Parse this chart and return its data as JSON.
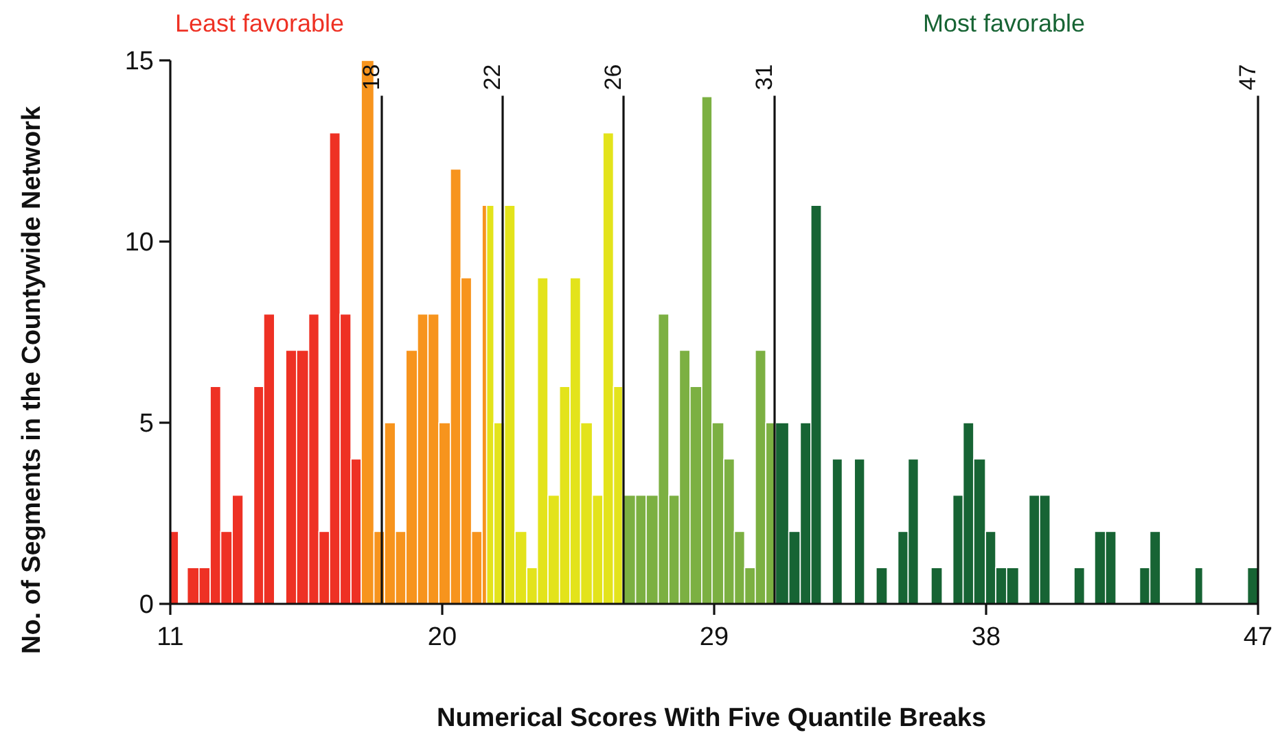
{
  "chart_data": {
    "type": "histogram",
    "xlabel": "Numerical Scores With Five Quantile Breaks",
    "ylabel": "No. of Segments in the Countywide Network",
    "annotations": [
      "Least favorable",
      "Most favorable"
    ],
    "bins": [
      11.0,
      11.27,
      11.56,
      11.95,
      12.32,
      12.67,
      13.05,
      13.41,
      13.76,
      14.09,
      14.45,
      14.82,
      15.18,
      15.58,
      15.92,
      16.27,
      16.62,
      16.98,
      17.32,
      17.74,
      18.09,
      18.45,
      18.8,
      19.18,
      19.53,
      19.89,
      20.27,
      20.62,
      20.97,
      21.32,
      21.47,
      21.71,
      22.06,
      22.41,
      22.8,
      23.15,
      23.5,
      23.88,
      24.23,
      24.58,
      24.97,
      25.32,
      25.67,
      25.97,
      26.4,
      26.75,
      27.15,
      27.5,
      27.85,
      28.2,
      28.59,
      28.93,
      29.32,
      29.67,
      30.01,
      30.36,
      30.71,
      31.03,
      31.47,
      31.85,
      32.2,
      32.55,
      32.91,
      33.24,
      33.64,
      33.98,
      34.36,
      34.73,
      35.08,
      35.42,
      35.76,
      36.18,
      36.55,
      36.9,
      37.24,
      37.59,
      37.98,
      38.32,
      38.68,
      39.08,
      39.42,
      39.77,
      40.12,
      40.91,
      41.26,
      41.59,
      41.95,
      42.3,
      43.08,
      43.42,
      43.77,
      44.91,
      45.17,
      46.65,
      47.0
    ],
    "values": [
      2,
      0,
      1,
      1,
      6,
      2,
      3,
      0,
      6,
      8,
      0,
      7,
      7,
      8,
      2,
      13,
      8,
      4,
      15,
      2,
      5,
      2,
      7,
      8,
      8,
      5,
      12,
      9,
      2,
      11,
      11,
      5,
      11,
      2,
      1,
      9,
      3,
      6,
      9,
      5,
      3,
      13,
      6,
      3,
      3,
      3,
      8,
      3,
      7,
      6,
      14,
      5,
      4,
      2,
      1,
      7,
      5,
      5,
      2,
      5,
      11,
      0,
      4,
      0,
      4,
      0,
      1,
      0,
      2,
      4,
      0,
      1,
      0,
      3,
      5,
      4,
      2,
      1,
      1,
      0,
      3,
      3,
      0,
      1,
      0,
      2,
      2,
      0,
      1,
      2,
      0,
      1,
      0,
      1
    ],
    "colors": [
      "#ee3124",
      "#ee3124",
      "#ee3124",
      "#ee3124",
      "#ee3124",
      "#ee3124",
      "#ee3124",
      "#ee3124",
      "#ee3124",
      "#ee3124",
      "#ee3124",
      "#ee3124",
      "#ee3124",
      "#ee3124",
      "#ee3124",
      "#ee3124",
      "#ee3124",
      "#ee3124",
      "#f7941d",
      "#f7941d",
      "#f7941d",
      "#f7941d",
      "#f7941d",
      "#f7941d",
      "#f7941d",
      "#f7941d",
      "#f7941d",
      "#f7941d",
      "#f7941d",
      "#f7941d",
      "#e3e31b",
      "#e3e31b",
      "#e3e31b",
      "#e3e31b",
      "#e3e31b",
      "#e3e31b",
      "#e3e31b",
      "#e3e31b",
      "#e3e31b",
      "#e3e31b",
      "#e3e31b",
      "#e3e31b",
      "#e3e31b",
      "#7cb042",
      "#7cb042",
      "#7cb042",
      "#7cb042",
      "#7cb042",
      "#7cb042",
      "#7cb042",
      "#7cb042",
      "#7cb042",
      "#7cb042",
      "#7cb042",
      "#7cb042",
      "#7cb042",
      "#7cb042",
      "#176434",
      "#176434",
      "#176434",
      "#176434",
      "#176434",
      "#176434",
      "#176434",
      "#176434",
      "#176434",
      "#176434",
      "#176434",
      "#176434",
      "#176434",
      "#176434",
      "#176434",
      "#176434",
      "#176434",
      "#176434",
      "#176434",
      "#176434",
      "#176434",
      "#176434",
      "#176434",
      "#176434",
      "#176434",
      "#176434",
      "#176434",
      "#176434",
      "#176434",
      "#176434",
      "#176434",
      "#176434",
      "#176434",
      "#176434",
      "#176434",
      "#176434",
      "#176434"
    ],
    "xlim": [
      11,
      47
    ],
    "ylim": [
      0,
      15
    ],
    "xticks": [
      11,
      20,
      29,
      38,
      47
    ],
    "yticks": [
      0,
      5,
      10,
      15
    ],
    "ref_lines": [
      {
        "axis": "x",
        "value": 18,
        "label": "18"
      },
      {
        "axis": "x",
        "value": 22,
        "label": "22"
      },
      {
        "axis": "x",
        "value": 26,
        "label": "26"
      },
      {
        "axis": "x",
        "value": 31,
        "label": "31"
      },
      {
        "axis": "x",
        "value": 47,
        "label": "47"
      }
    ],
    "grid": false
  }
}
